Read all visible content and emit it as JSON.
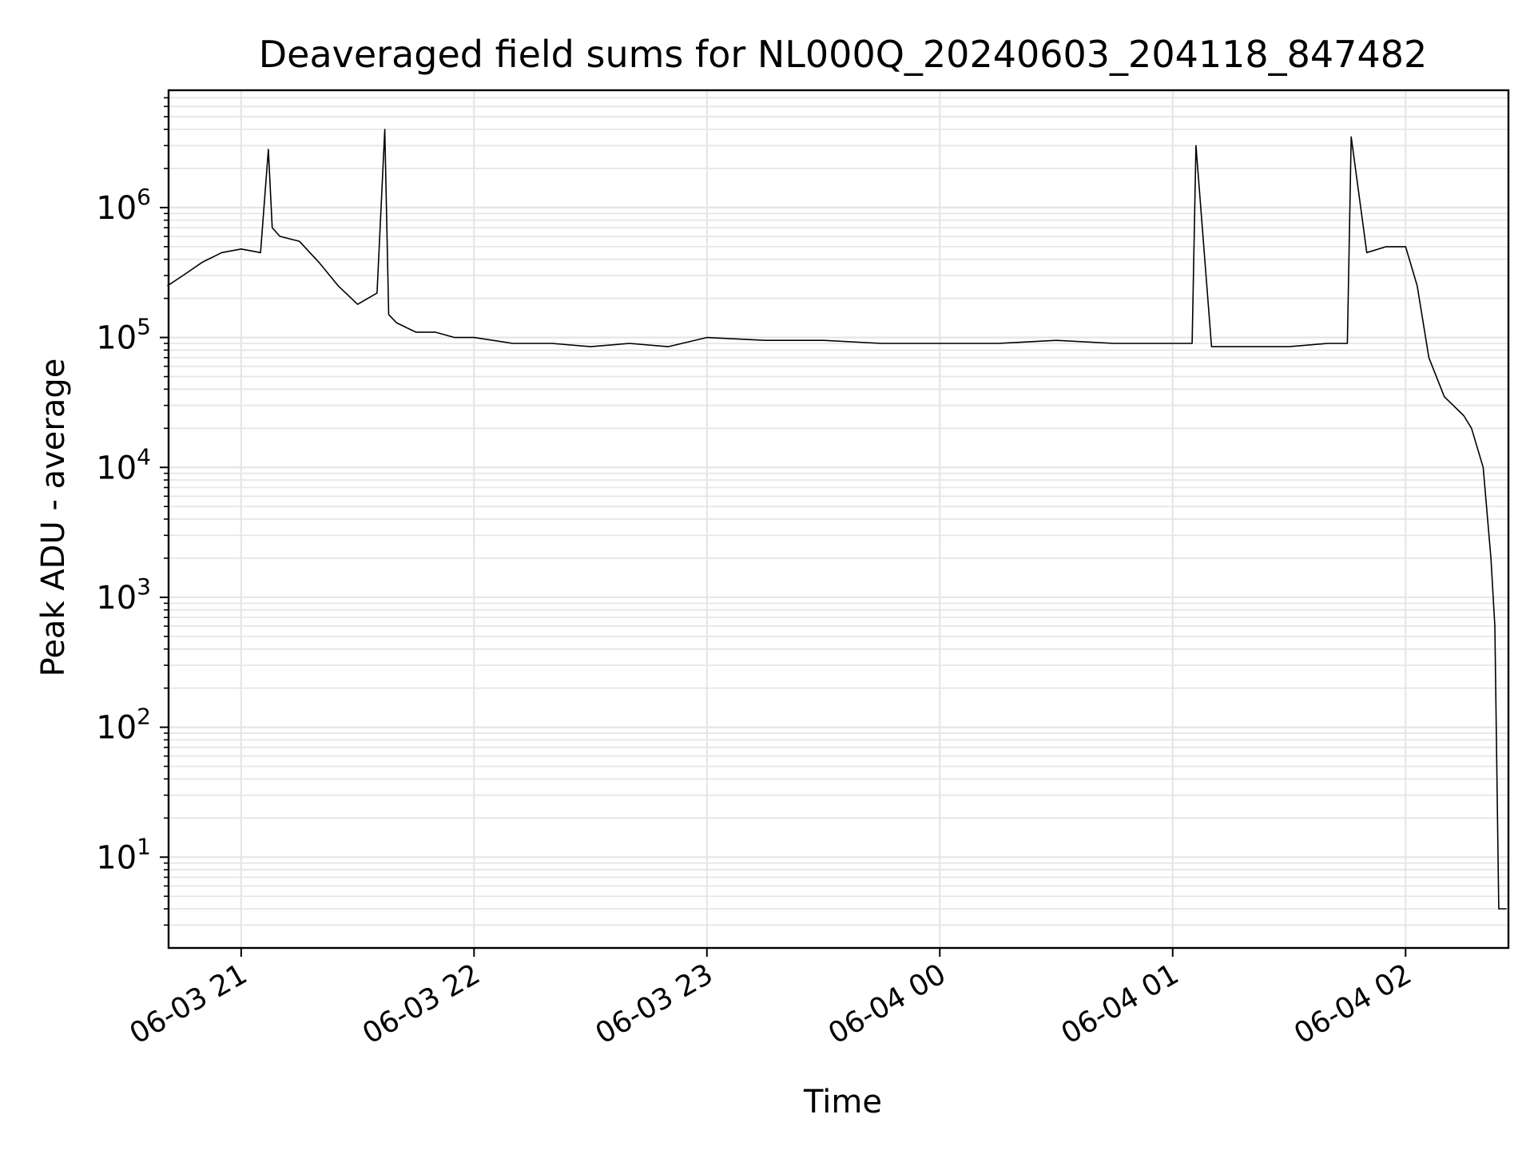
{
  "chart_data": {
    "type": "line",
    "title": "Deaveraged field sums for NL000Q_20240603_204118_847482",
    "xlabel": "Time",
    "ylabel": "Peak ADU - average",
    "y_scale": "log",
    "grid": true,
    "grid_minor": true,
    "line_color": "#000000",
    "grid_color": "#e6e6e6",
    "xlim": [
      "2024-06-03 20:41:18",
      "2024-06-04 02:26:30"
    ],
    "ylim": [
      2,
      8000000
    ],
    "x_ticks": [
      {
        "t": "2024-06-03 21:00",
        "label": "06-03 21"
      },
      {
        "t": "2024-06-03 22:00",
        "label": "06-03 22"
      },
      {
        "t": "2024-06-03 23:00",
        "label": "06-03 23"
      },
      {
        "t": "2024-06-04 00:00",
        "label": "06-04 00"
      },
      {
        "t": "2024-06-04 01:00",
        "label": "06-04 01"
      },
      {
        "t": "2024-06-04 02:00",
        "label": "06-04 02"
      }
    ],
    "y_ticks": [
      {
        "value": 10,
        "base": "10",
        "exp": "1"
      },
      {
        "value": 100,
        "base": "10",
        "exp": "2"
      },
      {
        "value": 1000,
        "base": "10",
        "exp": "3"
      },
      {
        "value": 10000,
        "base": "10",
        "exp": "4"
      },
      {
        "value": 100000,
        "base": "10",
        "exp": "5"
      },
      {
        "value": 1000000,
        "base": "10",
        "exp": "6"
      }
    ],
    "series": [
      {
        "x": [
          "2024-06-03 20:41",
          "2024-06-03 20:45",
          "2024-06-03 20:50",
          "2024-06-03 20:55",
          "2024-06-03 21:00",
          "2024-06-03 21:05",
          "2024-06-03 21:07",
          "2024-06-03 21:08",
          "2024-06-03 21:10",
          "2024-06-03 21:15",
          "2024-06-03 21:20",
          "2024-06-03 21:25",
          "2024-06-03 21:30",
          "2024-06-03 21:35",
          "2024-06-03 21:37",
          "2024-06-03 21:38",
          "2024-06-03 21:40",
          "2024-06-03 21:45",
          "2024-06-03 21:50",
          "2024-06-03 21:55",
          "2024-06-03 22:00",
          "2024-06-03 22:10",
          "2024-06-03 22:20",
          "2024-06-03 22:30",
          "2024-06-03 22:40",
          "2024-06-03 22:50",
          "2024-06-03 23:00",
          "2024-06-03 23:15",
          "2024-06-03 23:30",
          "2024-06-03 23:45",
          "2024-06-04 00:00",
          "2024-06-04 00:15",
          "2024-06-04 00:30",
          "2024-06-04 00:45",
          "2024-06-04 01:00",
          "2024-06-04 01:05",
          "2024-06-04 01:06",
          "2024-06-04 01:10",
          "2024-06-04 01:20",
          "2024-06-04 01:30",
          "2024-06-04 01:40",
          "2024-06-04 01:45",
          "2024-06-04 01:46",
          "2024-06-04 01:50",
          "2024-06-04 01:55",
          "2024-06-04 02:00",
          "2024-06-04 02:03",
          "2024-06-04 02:06",
          "2024-06-04 02:10",
          "2024-06-04 02:15",
          "2024-06-04 02:17",
          "2024-06-04 02:20",
          "2024-06-04 02:22",
          "2024-06-04 02:23",
          "2024-06-04 02:24",
          "2024-06-04 02:26"
        ],
        "y": [
          250000,
          300000,
          380000,
          450000,
          480000,
          450000,
          2800000,
          700000,
          600000,
          550000,
          380000,
          250000,
          180000,
          220000,
          4000000,
          150000,
          130000,
          110000,
          110000,
          100000,
          100000,
          90000,
          90000,
          85000,
          90000,
          85000,
          100000,
          95000,
          95000,
          90000,
          90000,
          90000,
          95000,
          90000,
          90000,
          90000,
          3000000,
          85000,
          85000,
          85000,
          90000,
          90000,
          3500000,
          450000,
          500000,
          500000,
          250000,
          70000,
          35000,
          25000,
          20000,
          10000,
          2000,
          600,
          4,
          4
        ]
      }
    ]
  }
}
